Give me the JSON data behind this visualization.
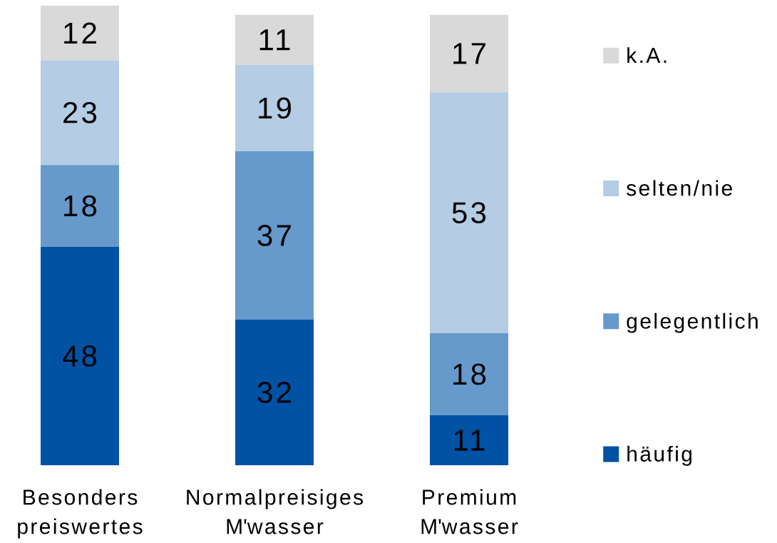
{
  "chart_data": {
    "type": "bar",
    "stacked": true,
    "data_labels": true,
    "legend": "right",
    "categories": [
      "Besonders preiswertes",
      "Normalpreisiges M'wasser",
      "Premium M'wasser"
    ],
    "series": [
      {
        "name": "häufig",
        "color": "#0052a5",
        "values": [
          48,
          32,
          11
        ]
      },
      {
        "name": "gelegentlich",
        "color": "#6699cc",
        "values": [
          18,
          37,
          18
        ]
      },
      {
        "name": "selten/nie",
        "color": "#b4cce4",
        "values": [
          23,
          19,
          53
        ]
      },
      {
        "name": "k.A.",
        "color": "#d9d9d9",
        "values": [
          12,
          11,
          17
        ]
      }
    ]
  }
}
